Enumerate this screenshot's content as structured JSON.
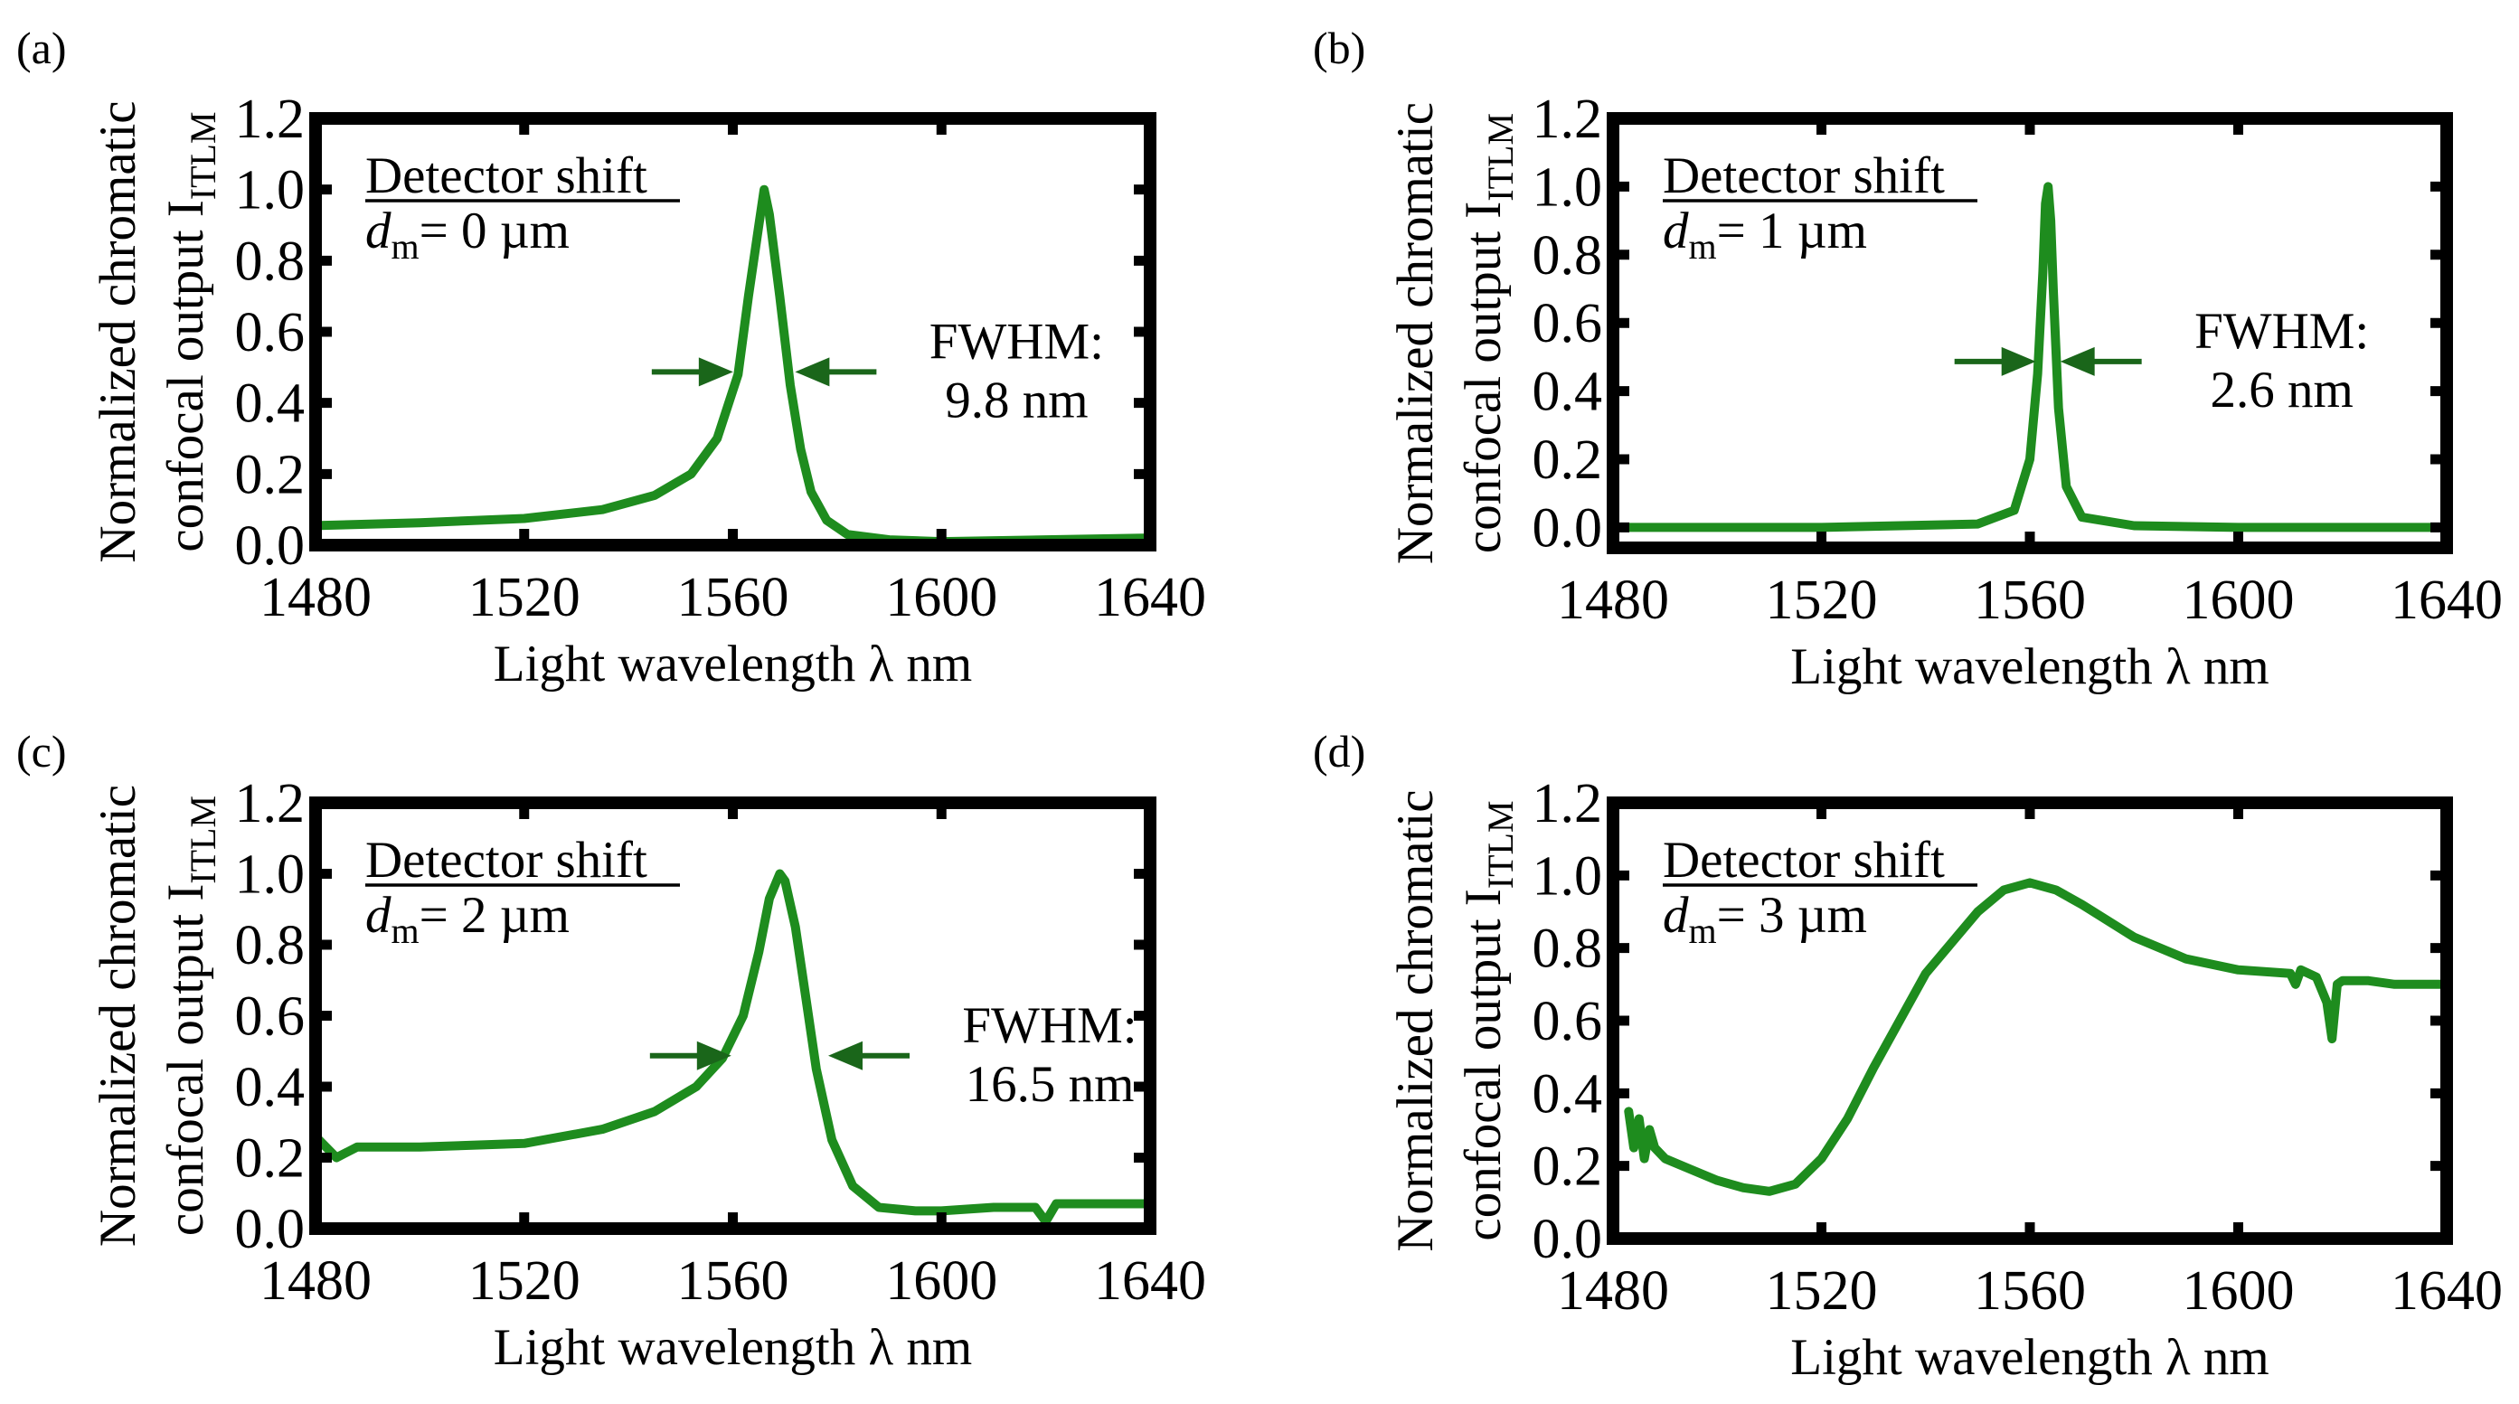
{
  "chart_data": [
    {
      "type": "line",
      "panel": "(a)",
      "xlabel": "Light wavelength λ  nm",
      "ylabel_line1": "Normalized chromatic",
      "ylabel_line2": "confocal output I",
      "ylabel_sub": "ITLM",
      "xlim": [
        1480,
        1640
      ],
      "ylim": [
        0.0,
        1.2
      ],
      "xticks": [
        "1480",
        "1520",
        "1560",
        "1600",
        "1640"
      ],
      "yticks": [
        "0.0",
        "0.2",
        "0.4",
        "0.6",
        "0.8",
        "1.0",
        "1.2"
      ],
      "legend_title": "Detector shift",
      "legend_var": "d",
      "legend_sub": "m",
      "legend_value": "= 0 µm",
      "fwhm_label": "FWHM:",
      "fwhm_value": "9.8 nm",
      "fwhm_center": 1566,
      "fwhm_y": 0.5,
      "fwhm_half": 9.8,
      "series": [
        {
          "name": "dm = 0 µm",
          "color": "#1e8c1e",
          "x": [
            1480,
            1500,
            1520,
            1535,
            1545,
            1552,
            1557,
            1561,
            1563,
            1565,
            1566,
            1567,
            1569,
            1571,
            1573,
            1575,
            1578,
            1582,
            1590,
            1600,
            1620,
            1640
          ],
          "y": [
            0.055,
            0.063,
            0.075,
            0.1,
            0.14,
            0.2,
            0.3,
            0.48,
            0.7,
            0.9,
            1.0,
            0.93,
            0.7,
            0.45,
            0.27,
            0.15,
            0.07,
            0.03,
            0.015,
            0.01,
            0.015,
            0.02
          ]
        }
      ]
    },
    {
      "type": "line",
      "panel": "(b)",
      "xlabel": "Light wavelength λ  nm",
      "ylabel_line1": "Normalized chromatic",
      "ylabel_line2": "confocal output I",
      "ylabel_sub": "ITLM",
      "xlim": [
        1480,
        1640
      ],
      "ylim": [
        -0.06,
        1.2
      ],
      "xticks": [
        "1480",
        "1520",
        "1560",
        "1600",
        "1640"
      ],
      "yticks": [
        "0.0",
        "0.2",
        "0.4",
        "0.6",
        "0.8",
        "1.0",
        "1.2"
      ],
      "legend_title": "Detector shift",
      "legend_var": "d",
      "legend_sub": "m",
      "legend_value": "= 1 µm",
      "fwhm_label": "FWHM:",
      "fwhm_value": "2.6 nm",
      "fwhm_center": 1563.5,
      "fwhm_y": 0.5,
      "fwhm_half": 2.6,
      "series": [
        {
          "name": "dm = 1 µm",
          "color": "#1e8c1e",
          "x": [
            1480,
            1520,
            1550,
            1557,
            1560,
            1561.5,
            1562.5,
            1563,
            1563.5,
            1564,
            1564.5,
            1565.5,
            1567,
            1570,
            1580,
            1600,
            1640
          ],
          "y": [
            0.0,
            0.0,
            0.01,
            0.05,
            0.2,
            0.45,
            0.75,
            0.95,
            1.0,
            0.9,
            0.7,
            0.35,
            0.12,
            0.03,
            0.005,
            0.0,
            0.0
          ]
        }
      ]
    },
    {
      "type": "line",
      "panel": "(c)",
      "xlabel": "Light wavelength λ  nm",
      "ylabel_line1": "Normalized chromatic",
      "ylabel_line2": "confocal output I",
      "ylabel_sub": "ITLM",
      "xlim": [
        1480,
        1640
      ],
      "ylim": [
        0.0,
        1.2
      ],
      "xticks": [
        "1480",
        "1520",
        "1560",
        "1600",
        "1640"
      ],
      "yticks": [
        "0.0",
        "0.2",
        "0.4",
        "0.6",
        "0.8",
        "1.0",
        "1.2"
      ],
      "legend_title": "Detector shift",
      "legend_var": "d",
      "legend_sub": "m",
      "legend_value": "= 2 µm",
      "fwhm_label": "FWHM:",
      "fwhm_value": "16.5 nm",
      "fwhm_center": 1569,
      "fwhm_y": 0.5,
      "fwhm_half": 16.5,
      "series": [
        {
          "name": "dm = 2 µm",
          "color": "#1e8c1e",
          "x": [
            1480,
            1484,
            1488,
            1500,
            1520,
            1535,
            1545,
            1553,
            1558,
            1562,
            1565,
            1567,
            1569,
            1570,
            1572,
            1574,
            1576,
            1579,
            1583,
            1588,
            1595,
            1600,
            1610,
            1618,
            1620,
            1622,
            1630,
            1640
          ],
          "y": [
            0.26,
            0.2,
            0.23,
            0.23,
            0.24,
            0.28,
            0.33,
            0.4,
            0.48,
            0.6,
            0.78,
            0.93,
            1.0,
            0.98,
            0.85,
            0.65,
            0.45,
            0.25,
            0.12,
            0.06,
            0.05,
            0.05,
            0.06,
            0.06,
            0.02,
            0.07,
            0.07,
            0.07
          ]
        }
      ]
    },
    {
      "type": "line",
      "panel": "(d)",
      "xlabel": "Light wavelength λ  nm",
      "ylabel_line1": "Normalized chromatic",
      "ylabel_line2": "confocal output I",
      "ylabel_sub": "ITLM",
      "xlim": [
        1480,
        1640
      ],
      "ylim": [
        0.0,
        1.2
      ],
      "xticks": [
        "1480",
        "1520",
        "1560",
        "1600",
        "1640"
      ],
      "yticks": [
        "0.0",
        "0.2",
        "0.4",
        "0.6",
        "0.8",
        "1.0",
        "1.2"
      ],
      "legend_title": "Detector shift",
      "legend_var": "d",
      "legend_sub": "m",
      "legend_value": "= 3 µm",
      "series": [
        {
          "name": "dm = 3 µm",
          "color": "#1e8c1e",
          "x": [
            1483,
            1484,
            1485,
            1486,
            1487,
            1488,
            1490,
            1495,
            1500,
            1505,
            1510,
            1515,
            1520,
            1525,
            1530,
            1540,
            1550,
            1555,
            1560,
            1565,
            1570,
            1580,
            1590,
            1600,
            1610,
            1611,
            1612,
            1615,
            1617,
            1618,
            1619,
            1620,
            1625,
            1630,
            1640
          ],
          "y": [
            0.35,
            0.25,
            0.33,
            0.22,
            0.3,
            0.25,
            0.22,
            0.19,
            0.16,
            0.14,
            0.13,
            0.15,
            0.22,
            0.33,
            0.47,
            0.73,
            0.9,
            0.96,
            0.98,
            0.96,
            0.92,
            0.83,
            0.77,
            0.74,
            0.73,
            0.7,
            0.74,
            0.72,
            0.65,
            0.55,
            0.7,
            0.71,
            0.71,
            0.7,
            0.7
          ]
        }
      ]
    }
  ]
}
